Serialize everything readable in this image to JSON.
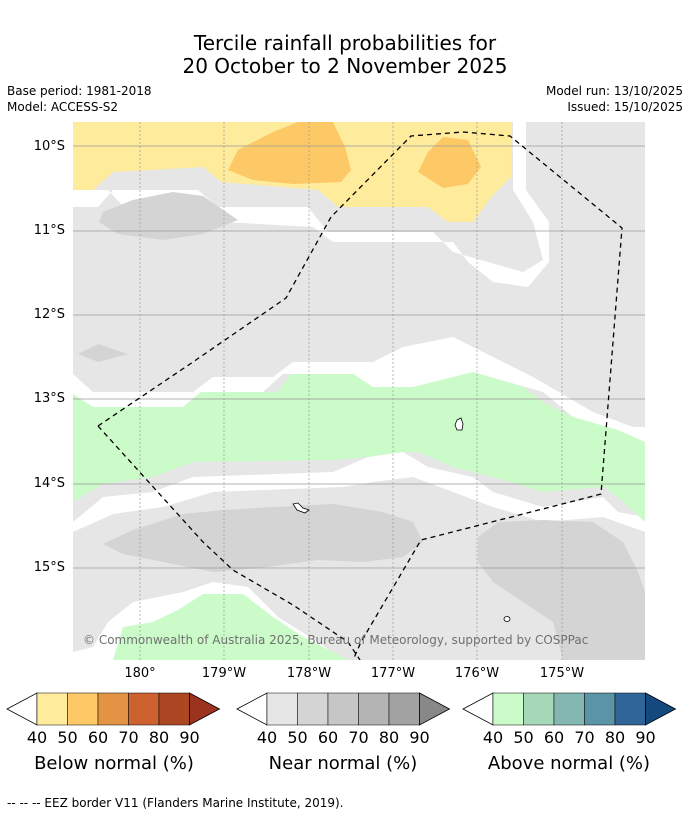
{
  "title": {
    "line1": "Tercile rainfall probabilities for",
    "line2": "20 October to 2 November 2025"
  },
  "meta": {
    "base_period": "Base period: 1981-2018",
    "model": "Model: ACCESS-S2",
    "model_run": "Model run: 13/10/2025",
    "issued": "Issued: 15/10/2025"
  },
  "map": {
    "lat_labels": [
      "10°S",
      "11°S",
      "12°S",
      "13°S",
      "14°S",
      "15°S"
    ],
    "lon_labels": [
      "180°",
      "179°W",
      "178°W",
      "177°W",
      "176°W",
      "175°W"
    ],
    "copyright": "© Commonwealth of Australia 2025, Bureau of Meteorology, supported by COSPPac",
    "colors": {
      "below_40": "#ffeb9c",
      "below_50": "#fdc966",
      "near_40": "#e6e6e6",
      "near_50": "#d4d4d4",
      "above_40": "#cbfbc8",
      "grid": "#9a9a9a",
      "eez": "#000000"
    }
  },
  "legend": {
    "ticks": [
      "40",
      "50",
      "60",
      "70",
      "80",
      "90"
    ],
    "below_label": "Below normal (%)",
    "near_label": "Near normal (%)",
    "above_label": "Above normal (%)",
    "below_colors": [
      "#ffeb9c",
      "#fdc966",
      "#e29444",
      "#cd6230",
      "#ad4622",
      "#9b331e"
    ],
    "near_colors": [
      "#e6e6e6",
      "#d4d4d4",
      "#c6c6c6",
      "#b4b4b4",
      "#a2a2a2",
      "#888888"
    ],
    "above_colors": [
      "#cbfbc8",
      "#a5d8b9",
      "#82b7b2",
      "#5c94a7",
      "#2f6597",
      "#13497d"
    ]
  },
  "footer": "--  --  -- EEZ border V11 (Flanders Marine Institute, 2019)."
}
